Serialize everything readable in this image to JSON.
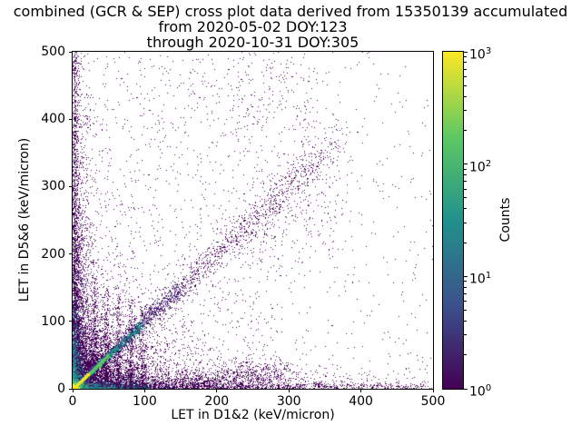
{
  "figure": {
    "background": "#ffffff",
    "text_color": "#000000"
  },
  "chart_data": {
    "type": "scatter",
    "title": "combined (GCR & SEP) cross plot data derived from 15350139 accumulated",
    "subtitle_1": "from 2020-05-02 DOY:123",
    "subtitle_2": "through 2020-10-31 DOY:305",
    "xlabel": "LET in D1&2 (keV/micron)",
    "ylabel": "LET in D5&6 (keV/micron)",
    "xlim": [
      0,
      500
    ],
    "ylim": [
      0,
      500
    ],
    "xticks": [
      0,
      100,
      200,
      300,
      400,
      500
    ],
    "yticks": [
      0,
      100,
      200,
      300,
      400,
      500
    ],
    "grid": false,
    "seed": 20200502,
    "colorbar": {
      "label": "Counts",
      "scale": "log",
      "colormap": "viridis",
      "tick_base": "10",
      "tick_exponents": [
        3,
        2,
        1,
        0
      ],
      "minor_ticks": true,
      "stops_top_to_bottom": [
        "#fde725",
        "#5ec962",
        "#21918c",
        "#3b528b",
        "#440154"
      ]
    },
    "density_regions": [
      {
        "shape": "uniform",
        "x": [
          0,
          500
        ],
        "y": [
          0,
          500
        ],
        "count": 700,
        "color": "#440154"
      },
      {
        "shape": "uniform",
        "x": [
          0,
          300
        ],
        "y": [
          0,
          500
        ],
        "count": 800,
        "color": "#440154"
      },
      {
        "shape": "uniform",
        "x": [
          220,
          340
        ],
        "y": [
          380,
          500
        ],
        "count": 130,
        "color": "#440154"
      },
      {
        "shape": "exp",
        "scale": [
          45,
          45
        ],
        "count": 5200,
        "color": "#440154"
      },
      {
        "shape": "exp",
        "scale": [
          10,
          170
        ],
        "count": 2600,
        "color": "#440154"
      },
      {
        "shape": "exp",
        "scale": [
          170,
          10
        ],
        "count": 2200,
        "color": "#440154"
      },
      {
        "shape": "vband",
        "cx": 3,
        "width": 2.5,
        "ymax": 500,
        "power": 1.4,
        "count": 900,
        "color": "#440154"
      },
      {
        "shape": "hband",
        "cy": 3,
        "width": 2.5,
        "xmax": 490,
        "power": 1.2,
        "count": 600,
        "color": "#440154"
      },
      {
        "shape": "diagonal",
        "length": 370,
        "spread": 24,
        "power": 1.7,
        "count": 1300,
        "color": "#440154"
      },
      {
        "shape": "diagonal",
        "length": 360,
        "spread": 12,
        "power": 1.0,
        "count": 600,
        "color": "#440154"
      },
      {
        "shape": "vband",
        "cx": 30,
        "width": 2,
        "ymax": 160,
        "power": 1.9,
        "count": 270,
        "color": "#440154"
      },
      {
        "shape": "vband",
        "cx": 46,
        "width": 2,
        "ymax": 150,
        "power": 1.9,
        "count": 250,
        "color": "#440154"
      },
      {
        "shape": "vband",
        "cx": 63,
        "width": 2,
        "ymax": 140,
        "power": 1.9,
        "count": 230,
        "color": "#440154"
      },
      {
        "shape": "vband",
        "cx": 80,
        "width": 2,
        "ymax": 130,
        "power": 1.9,
        "count": 210,
        "color": "#440154"
      },
      {
        "shape": "vband",
        "cx": 97,
        "width": 2,
        "ymax": 120,
        "power": 1.9,
        "count": 190,
        "color": "#440154"
      },
      {
        "shape": "gauss",
        "cx": 255,
        "cy": 22,
        "sx": 30,
        "sy": 11,
        "count": 420,
        "color": "#440154"
      },
      {
        "shape": "gauss",
        "cx": 180,
        "cy": 14,
        "sx": 24,
        "sy": 7,
        "count": 300,
        "color": "#440154"
      },
      {
        "shape": "gauss",
        "cx": 295,
        "cy": 255,
        "sx": 45,
        "sy": 40,
        "count": 260,
        "color": "#440154"
      },
      {
        "shape": "diagonal",
        "length": 150,
        "spread": 8,
        "power": 1.9,
        "count": 1500,
        "color": "#46327e"
      },
      {
        "shape": "exp",
        "scale": [
          6,
          45
        ],
        "count": 750,
        "color": "#3b528b"
      },
      {
        "shape": "exp",
        "scale": [
          45,
          6
        ],
        "count": 650,
        "color": "#3b528b"
      },
      {
        "shape": "diagonal",
        "length": 95,
        "spread": 4,
        "power": 2.0,
        "count": 1200,
        "color": "#21918c"
      },
      {
        "shape": "exp",
        "scale": [
          3,
          30
        ],
        "count": 420,
        "color": "#21918c"
      },
      {
        "shape": "exp",
        "scale": [
          30,
          3
        ],
        "count": 380,
        "color": "#21918c"
      },
      {
        "shape": "diagonal",
        "length": 50,
        "spread": 2.2,
        "power": 2.0,
        "count": 850,
        "color": "#5ec962"
      },
      {
        "shape": "gauss",
        "cx": 4,
        "cy": 4,
        "sx": 5,
        "sy": 5,
        "count": 300,
        "color": "#5ec962"
      },
      {
        "shape": "diagonal",
        "length": 22,
        "spread": 1.3,
        "power": 2.0,
        "count": 550,
        "color": "#fde725"
      },
      {
        "shape": "gauss",
        "cx": 2,
        "cy": 2,
        "sx": 2.5,
        "sy": 2.5,
        "count": 250,
        "color": "#fde725"
      }
    ]
  }
}
